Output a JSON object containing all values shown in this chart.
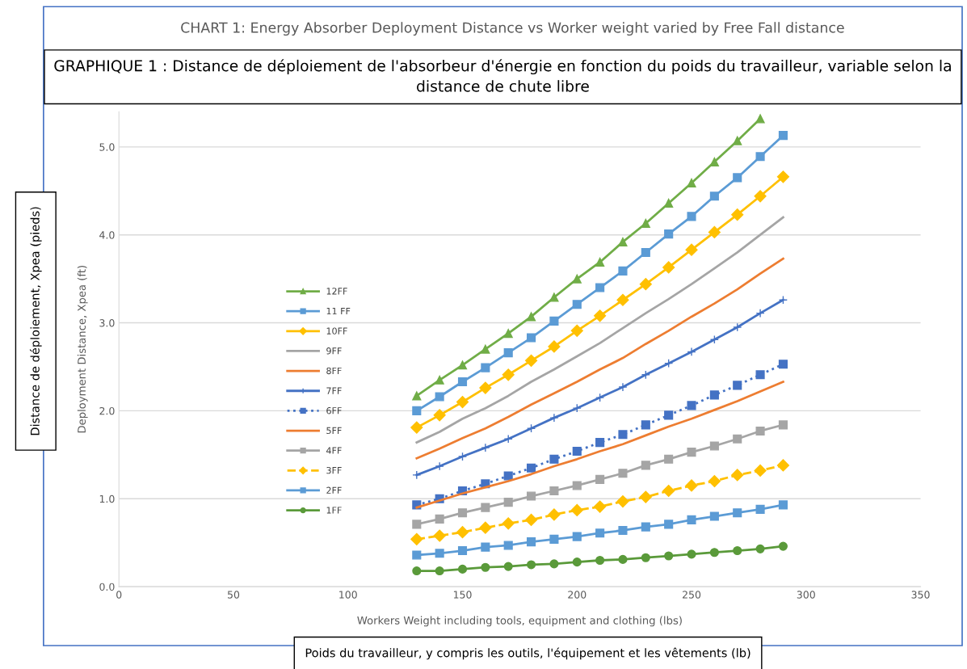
{
  "chart_data": {
    "type": "line",
    "title": "CHART 1: Energy Absorber Deployment Distance vs Worker weight varied by Free Fall distance",
    "subtitle": "GRAPHIQUE 1 : Distance de déploiement de l'absorbeur d'énergie en fonction du poids du travailleur, variable selon la distance de chute libre",
    "xlabel": "Workers Weight including tools, equipment and clothing (lbs)",
    "ylabel": "Deployment Distance, Xpea (ft)",
    "annotations": [
      "Distance de déploiement, Xpea (pieds)",
      "Poids du travailleur, y compris les outils, l'équipement et les vêtements (lb)"
    ],
    "x": [
      130,
      140,
      150,
      160,
      170,
      180,
      190,
      200,
      210,
      220,
      230,
      240,
      250,
      260,
      270,
      280,
      290
    ],
    "xlim": [
      0,
      350
    ],
    "xticks": [
      0,
      50,
      100,
      150,
      200,
      250,
      300,
      350
    ],
    "ylim": [
      0,
      5.4
    ],
    "yticks": [
      {
        "value": 0,
        "label": "0.0"
      },
      {
        "value": 1,
        "label": "1.0"
      },
      {
        "value": 2,
        "label": "2.0"
      },
      {
        "value": 3,
        "label": "3.0"
      },
      {
        "value": 4,
        "label": "4.0"
      },
      {
        "value": 5,
        "label": "5.0"
      }
    ],
    "grid": "y",
    "legend": "left",
    "series": [
      {
        "name": "12FF",
        "color": "#70ad47",
        "marker": "triangle",
        "line_style": "solid",
        "values": [
          2.17,
          2.35,
          2.52,
          2.7,
          2.88,
          3.07,
          3.29,
          3.5,
          3.69,
          3.92,
          4.13,
          4.36,
          4.59,
          4.83,
          5.07,
          5.32,
          null
        ]
      },
      {
        "name": "11 FF",
        "color": "#5b9bd5",
        "marker": "square",
        "line_style": "solid",
        "values": [
          2.0,
          2.16,
          2.33,
          2.49,
          2.66,
          2.83,
          3.02,
          3.21,
          3.4,
          3.59,
          3.8,
          4.01,
          4.21,
          4.44,
          4.65,
          4.89,
          5.13
        ]
      },
      {
        "name": "10FF",
        "color": "#ffc000",
        "marker": "diamond",
        "line_style": "solid",
        "values": [
          1.81,
          1.95,
          2.1,
          2.26,
          2.41,
          2.57,
          2.73,
          2.91,
          3.08,
          3.26,
          3.44,
          3.63,
          3.83,
          4.03,
          4.23,
          4.44,
          4.66
        ]
      },
      {
        "name": "9FF",
        "color": "#a5a5a5",
        "marker": "none",
        "line_style": "solid",
        "values": [
          1.64,
          1.76,
          1.91,
          2.03,
          2.17,
          2.33,
          2.47,
          2.62,
          2.77,
          2.94,
          3.11,
          3.27,
          3.44,
          3.62,
          3.8,
          4.0,
          4.2
        ]
      },
      {
        "name": "8FF",
        "color": "#ed7d31",
        "marker": "none",
        "line_style": "solid",
        "values": [
          1.46,
          1.57,
          1.69,
          1.8,
          1.93,
          2.07,
          2.2,
          2.33,
          2.47,
          2.6,
          2.76,
          2.91,
          3.07,
          3.22,
          3.38,
          3.56,
          3.73
        ]
      },
      {
        "name": "7FF",
        "color": "#4472c4",
        "marker": "cross",
        "line_style": "solid",
        "values": [
          1.27,
          1.37,
          1.48,
          1.58,
          1.68,
          1.8,
          1.92,
          2.03,
          2.15,
          2.27,
          2.41,
          2.54,
          2.67,
          2.81,
          2.95,
          3.11,
          3.26
        ]
      },
      {
        "name": "6FF",
        "color": "#4472c4",
        "marker": "square",
        "line_style": "dotted",
        "values": [
          0.93,
          1.0,
          1.09,
          1.17,
          1.26,
          1.35,
          1.45,
          1.54,
          1.64,
          1.73,
          1.84,
          1.95,
          2.06,
          2.18,
          2.29,
          2.41,
          2.53
        ]
      },
      {
        "name": "5FF",
        "color": "#ed7d31",
        "marker": "none",
        "line_style": "solid",
        "values": [
          0.9,
          0.98,
          1.06,
          1.13,
          1.2,
          1.28,
          1.37,
          1.45,
          1.54,
          1.62,
          1.72,
          1.82,
          1.91,
          2.01,
          2.11,
          2.22,
          2.33
        ]
      },
      {
        "name": "4FF",
        "color": "#a5a5a5",
        "marker": "square",
        "line_style": "solid",
        "values": [
          0.71,
          0.77,
          0.84,
          0.9,
          0.96,
          1.03,
          1.09,
          1.15,
          1.22,
          1.29,
          1.38,
          1.45,
          1.53,
          1.6,
          1.68,
          1.77,
          1.84
        ]
      },
      {
        "name": "3FF",
        "color": "#ffc000",
        "marker": "diamond",
        "line_style": "dashed",
        "values": [
          0.54,
          0.58,
          0.62,
          0.67,
          0.72,
          0.76,
          0.82,
          0.87,
          0.91,
          0.97,
          1.02,
          1.09,
          1.15,
          1.2,
          1.27,
          1.32,
          1.38
        ]
      },
      {
        "name": "2FF",
        "color": "#5b9bd5",
        "marker": "square",
        "line_style": "solid",
        "values": [
          0.36,
          0.38,
          0.41,
          0.45,
          0.47,
          0.51,
          0.54,
          0.57,
          0.61,
          0.64,
          0.68,
          0.71,
          0.76,
          0.8,
          0.84,
          0.88,
          0.93
        ]
      },
      {
        "name": "1FF",
        "color": "#5a9a3a",
        "marker": "circle",
        "line_style": "solid",
        "values": [
          0.18,
          0.18,
          0.2,
          0.22,
          0.23,
          0.25,
          0.26,
          0.28,
          0.3,
          0.31,
          0.33,
          0.35,
          0.37,
          0.39,
          0.41,
          0.43,
          0.46
        ]
      }
    ]
  }
}
